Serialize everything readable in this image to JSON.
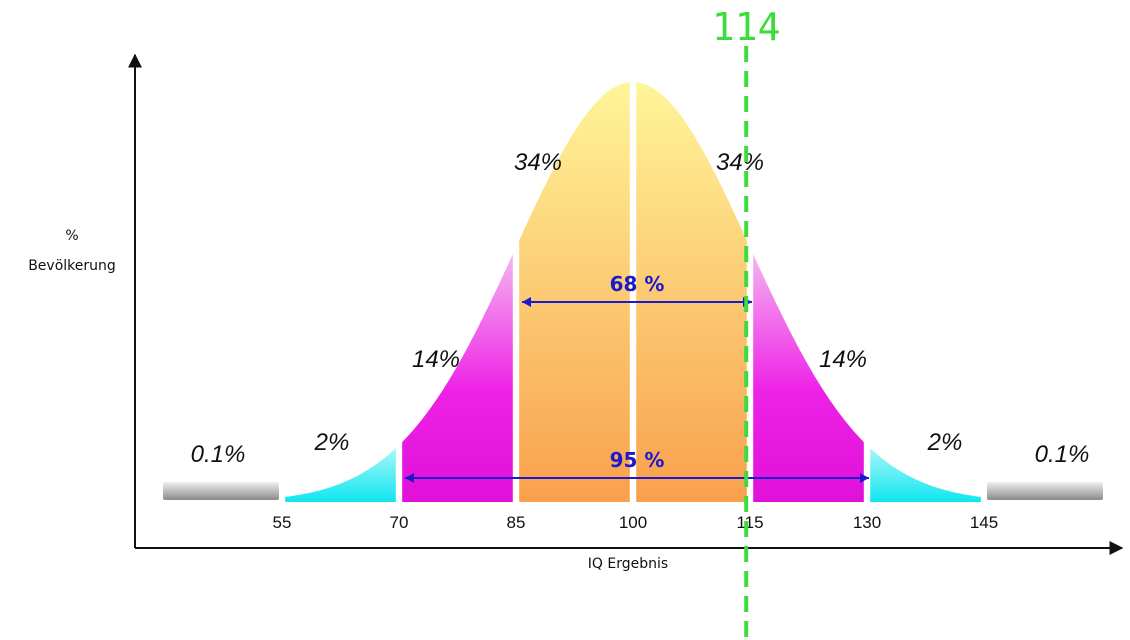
{
  "chart_data": {
    "type": "area",
    "title": "",
    "xlabel": "IQ Ergebnis",
    "ylabel_line1": "%",
    "ylabel_line2": "Bevölkerung",
    "x_ticks": [
      "55",
      "70",
      "85",
      "100",
      "115",
      "130",
      "145"
    ],
    "distribution": {
      "mean": 100,
      "sd": 15
    },
    "xlim": [
      40,
      165
    ],
    "segments": [
      {
        "from": 40,
        "to": 55,
        "percent": "0.1%",
        "color": "#b0b0b0"
      },
      {
        "from": 55,
        "to": 70,
        "percent": "2%",
        "color": "#22e8f0"
      },
      {
        "from": 70,
        "to": 85,
        "percent": "14%",
        "color": "#f21ee8"
      },
      {
        "from": 85,
        "to": 100,
        "percent": "34%",
        "color": "#f9b156"
      },
      {
        "from": 100,
        "to": 115,
        "percent": "34%",
        "color": "#f9b156"
      },
      {
        "from": 115,
        "to": 130,
        "percent": "14%",
        "color": "#f21ee8"
      },
      {
        "from": 130,
        "to": 145,
        "percent": "2%",
        "color": "#22e8f0"
      },
      {
        "from": 145,
        "to": 160,
        "percent": "0.1%",
        "color": "#b0b0b0"
      }
    ],
    "ranges": [
      {
        "label": "68 %",
        "from": 85,
        "to": 115
      },
      {
        "label": "95 %",
        "from": 70,
        "to": 130
      }
    ],
    "marker": {
      "value": 114,
      "label": "114",
      "color": "#3ddc3d"
    },
    "grid": false,
    "legend": "none"
  },
  "colors": {
    "axis": "#111111",
    "range_arrow": "#1a1acc",
    "range_text": "#1a1acc",
    "core_top": "#fff59a",
    "core_bottom": "#f9a04c"
  }
}
